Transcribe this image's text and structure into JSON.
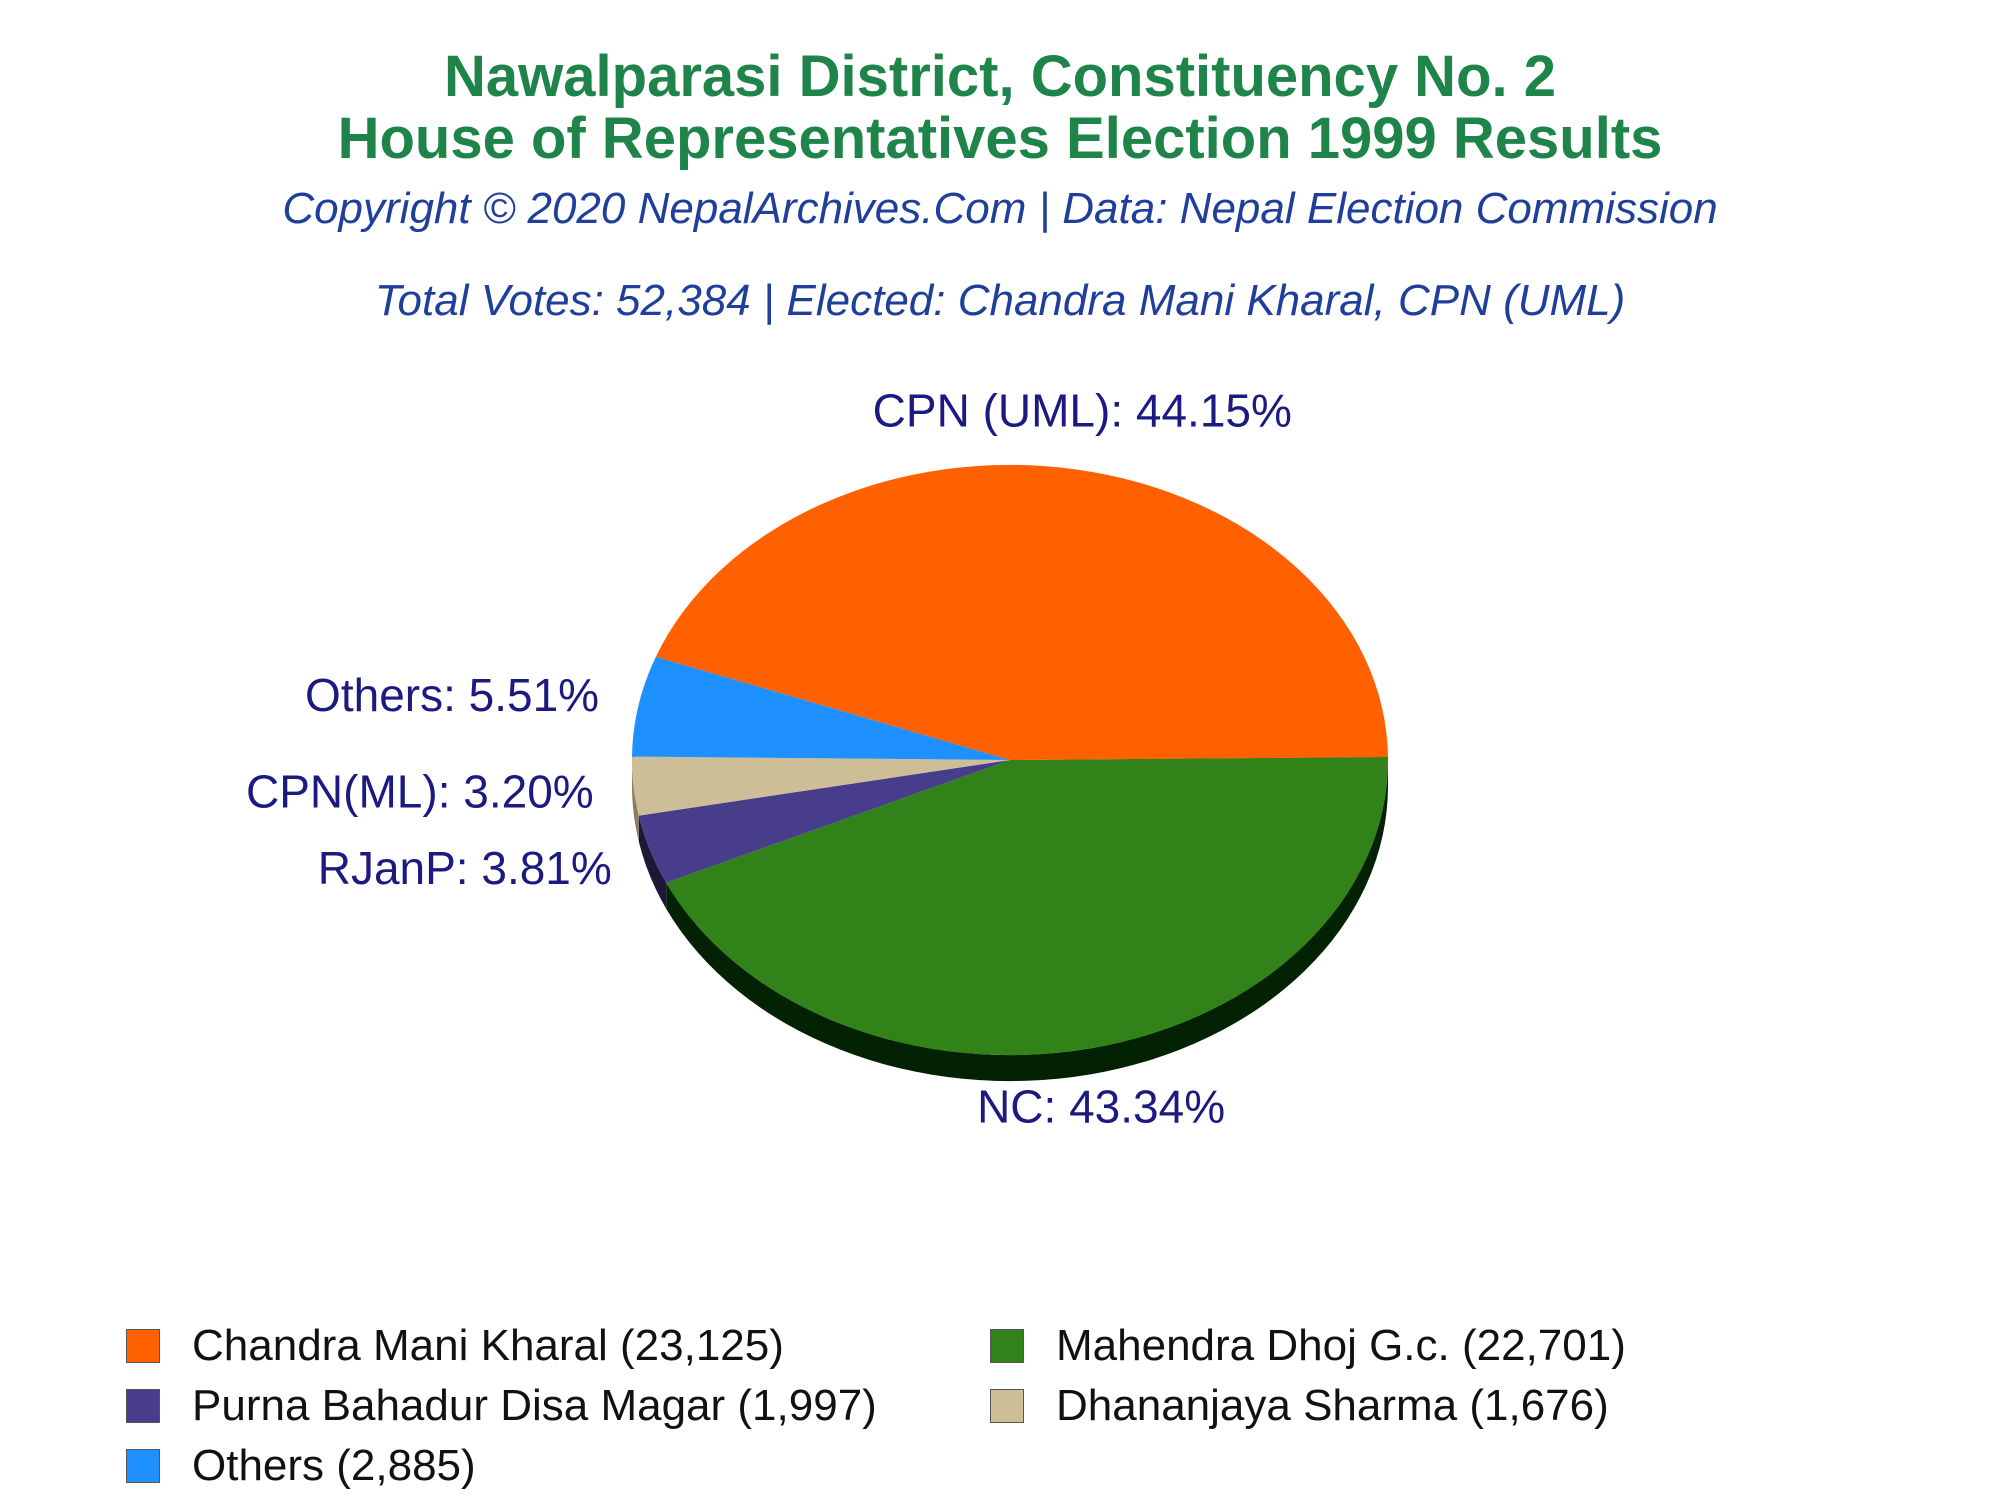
{
  "header": {
    "title_line1": "Nawalparasi District, Constituency No. 2",
    "title_line2": "House of Representatives Election 1999 Results",
    "copyright": "Copyright © 2020 NepalArchives.Com | Data: Nepal Election Commission",
    "summary": "Total Votes: 52,384 | Elected: Chandra Mani Kharal, CPN (UML)"
  },
  "chart_data": {
    "type": "pie",
    "title": "House of Representatives Election 1999 Results",
    "total_votes": 52384,
    "slices": [
      {
        "party": "NC",
        "label": "NC: 43.34%",
        "percent": 43.34,
        "candidate": "Mahendra Dhoj G.c.",
        "votes": 22701,
        "legend": "Mahendra Dhoj G.c. (22,701)",
        "color": "#318219",
        "side_color": "#032103"
      },
      {
        "party": "RJanP",
        "label": "RJanP: 3.81%",
        "percent": 3.81,
        "candidate": "Purna Bahadur Disa Magar",
        "votes": 1997,
        "legend": "Purna Bahadur Disa Magar (1,997)",
        "color": "#483d8b",
        "side_color": "#1d1838"
      },
      {
        "party": "CPN(ML)",
        "label": "CPN(ML): 3.20%",
        "percent": 3.2,
        "candidate": "Dhananjaya Sharma",
        "votes": 1676,
        "legend": "Dhananjaya Sharma (1,676)",
        "color": "#cdbe98",
        "side_color": "#8a7e60"
      },
      {
        "party": "Others",
        "label": "Others: 5.51%",
        "percent": 5.51,
        "candidate": "Others",
        "votes": 2885,
        "legend": "Others (2,885)",
        "color": "#1e90ff",
        "side_color": "#0b4f99"
      },
      {
        "party": "CPN (UML)",
        "label": "CPN (UML): 44.15%",
        "percent": 44.15,
        "candidate": "Chandra Mani Kharal",
        "votes": 23125,
        "legend": "Chandra Mani Kharal (23,125)",
        "color": "#ff6000",
        "side_color": "#b30000"
      }
    ],
    "legend_order": [
      {
        "text": "Chandra Mani Kharal (23,125)",
        "color": "#ff6000"
      },
      {
        "text": "Mahendra Dhoj G.c. (22,701)",
        "color": "#318219"
      },
      {
        "text": "Purna Bahadur Disa Magar (1,997)",
        "color": "#483d8b"
      },
      {
        "text": "Dhananjaya Sharma (1,676)",
        "color": "#cdbe98"
      },
      {
        "text": "Others (2,885)",
        "color": "#1e90ff"
      }
    ]
  }
}
